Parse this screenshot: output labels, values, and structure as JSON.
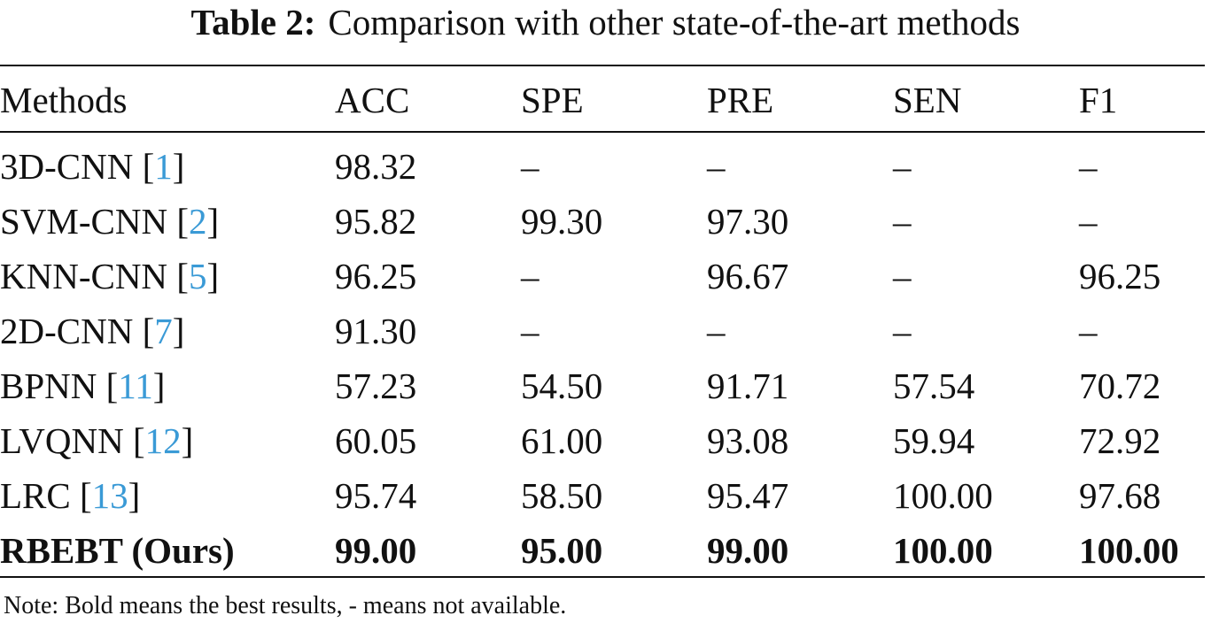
{
  "caption": {
    "label": "Table 2:",
    "text": "Comparison with other state-of-the-art methods"
  },
  "table": {
    "headers": [
      "Methods",
      "ACC",
      "SPE",
      "PRE",
      "SEN",
      "F1"
    ],
    "rows": [
      {
        "method": "3D-CNN",
        "ref": "1",
        "acc": "98.32",
        "spe": "–",
        "pre": "–",
        "sen": "–",
        "f1": "–"
      },
      {
        "method": "SVM-CNN",
        "ref": "2",
        "acc": "95.82",
        "spe": "99.30",
        "pre": "97.30",
        "sen": "–",
        "f1": "–"
      },
      {
        "method": "KNN-CNN",
        "ref": "5",
        "acc": "96.25",
        "spe": "–",
        "pre": "96.67",
        "sen": "–",
        "f1": "96.25"
      },
      {
        "method": "2D-CNN",
        "ref": "7",
        "acc": "91.30",
        "spe": "–",
        "pre": "–",
        "sen": "–",
        "f1": "–"
      },
      {
        "method": "BPNN",
        "ref": "11",
        "acc": "57.23",
        "spe": "54.50",
        "pre": "91.71",
        "sen": "57.54",
        "f1": "70.72"
      },
      {
        "method": "LVQNN",
        "ref": "12",
        "acc": "60.05",
        "spe": "61.00",
        "pre": "93.08",
        "sen": "59.94",
        "f1": "72.92"
      },
      {
        "method": "LRC",
        "ref": "13",
        "acc": "95.74",
        "spe": "58.50",
        "pre": "95.47",
        "sen": "100.00",
        "f1": "97.68"
      }
    ],
    "best_row": {
      "method": "RBEBT (Ours)",
      "acc": "99.00",
      "spe": "95.00",
      "pre": "99.00",
      "sen": "100.00",
      "f1": "100.00"
    }
  },
  "note": "Note: Bold means the best results, - means not available.",
  "colors": {
    "citation": "#3a9ad6",
    "text": "#111111"
  }
}
